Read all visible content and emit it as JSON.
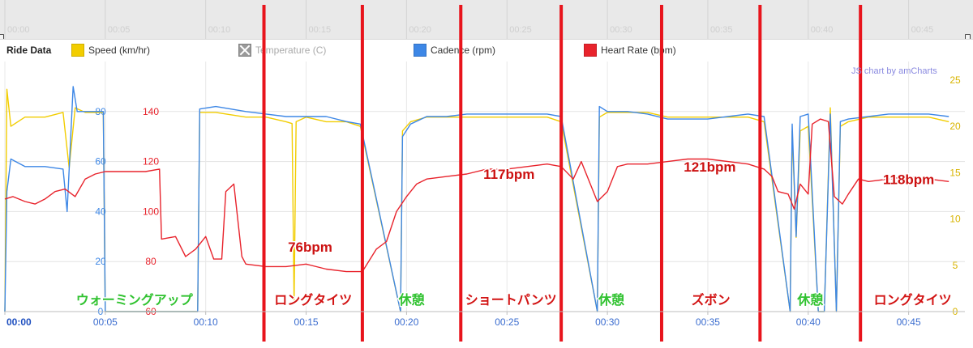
{
  "legend": {
    "title": "Ride Data",
    "items": [
      {
        "label": "Speed (km/hr)",
        "color": "#f2cd00",
        "enabled": true
      },
      {
        "label": "Temperature (C)",
        "color": "#999999",
        "enabled": false
      },
      {
        "label": "Cadence (rpm)",
        "color": "#3d87e6",
        "enabled": true
      },
      {
        "label": "Heart Rate (bpm)",
        "color": "#e8232c",
        "enabled": true
      }
    ]
  },
  "credit": "JS chart by amCharts",
  "navigator_ticks": [
    "00:00",
    "00:05",
    "00:10",
    "00:15",
    "00:20",
    "00:25",
    "00:30",
    "00:35",
    "00:40",
    "00:45"
  ],
  "annotations": {
    "segments": [
      {
        "label": "ウォーミングアップ",
        "color": "#2fc22f"
      },
      {
        "label": "ロングタイツ",
        "color": "#d21313"
      },
      {
        "label": "休憩",
        "color": "#2fc22f"
      },
      {
        "label": "ショートパンツ",
        "color": "#d21313"
      },
      {
        "label": "休憩",
        "color": "#2fc22f"
      },
      {
        "label": "ズボン",
        "color": "#d21313"
      },
      {
        "label": "休憩",
        "color": "#2fc22f"
      },
      {
        "label": "ロングタイツ",
        "color": "#d21313"
      }
    ],
    "divider_minutes": [
      12.9,
      17.8,
      22.7,
      27.7,
      32.7,
      37.6,
      42.6
    ],
    "hr_callouts": [
      {
        "label": "76bpm",
        "x_min": 15.2,
        "hr": 84
      },
      {
        "label": "117bpm",
        "x_min": 25.1,
        "hr": 113
      },
      {
        "label": "121bpm",
        "x_min": 35.1,
        "hr": 116
      },
      {
        "label": "118bpm",
        "x_min": 45.0,
        "hr": 111
      }
    ]
  },
  "chart_data": {
    "type": "line",
    "x_unit": "mm:ss",
    "x_range": [
      0,
      47.8
    ],
    "x_ticks": [
      "00:00",
      "00:05",
      "00:10",
      "00:15",
      "00:20",
      "00:25",
      "00:30",
      "00:35",
      "00:40",
      "00:45"
    ],
    "axes": {
      "cadence": {
        "ticks": [
          0,
          20,
          40,
          60,
          80
        ],
        "range": [
          0,
          100
        ],
        "color": "#3d87e6"
      },
      "heart_rate": {
        "ticks": [
          60,
          80,
          100,
          120,
          140
        ],
        "range": [
          60,
          160
        ],
        "color": "#e8232c"
      },
      "speed": {
        "ticks": [
          0,
          5,
          10,
          15,
          20,
          25
        ],
        "range": [
          0,
          27
        ],
        "color": "#f2cd00"
      }
    },
    "series": [
      {
        "name": "Speed (km/hr)",
        "axis": "speed",
        "color": "#f2cd00",
        "points": [
          [
            0,
            0
          ],
          [
            0.1,
            24
          ],
          [
            0.3,
            20
          ],
          [
            1,
            21
          ],
          [
            2,
            21
          ],
          [
            2.9,
            21.5
          ],
          [
            3.2,
            15.5
          ],
          [
            3.5,
            22
          ],
          [
            4,
            21.5
          ],
          [
            4.9,
            21.5
          ],
          [
            5.0,
            0
          ],
          [
            9.6,
            0
          ],
          [
            9.7,
            21.5
          ],
          [
            10.5,
            21.5
          ],
          [
            12,
            21
          ],
          [
            13,
            21
          ],
          [
            14,
            20.5
          ],
          [
            14.3,
            20.3
          ],
          [
            14.4,
            1
          ],
          [
            14.5,
            20.5
          ],
          [
            15,
            21
          ],
          [
            16,
            20.5
          ],
          [
            17,
            20.5
          ],
          [
            17.7,
            20
          ],
          [
            19.7,
            0
          ],
          [
            19.8,
            19.5
          ],
          [
            20.2,
            20.5
          ],
          [
            21,
            21
          ],
          [
            22,
            21
          ],
          [
            23,
            21
          ],
          [
            24,
            21
          ],
          [
            25,
            21
          ],
          [
            26,
            21
          ],
          [
            27,
            21
          ],
          [
            27.7,
            20.5
          ],
          [
            29.5,
            0
          ],
          [
            29.6,
            21
          ],
          [
            30,
            21.5
          ],
          [
            31,
            21.5
          ],
          [
            32,
            21.5
          ],
          [
            33,
            21
          ],
          [
            34,
            21
          ],
          [
            35,
            21
          ],
          [
            36,
            21
          ],
          [
            37,
            21
          ],
          [
            37.8,
            20.5
          ],
          [
            39.1,
            0
          ],
          [
            39.2,
            19.5
          ],
          [
            39.4,
            8
          ],
          [
            39.6,
            19.5
          ],
          [
            40,
            20
          ],
          [
            40.5,
            0
          ],
          [
            40.8,
            0
          ],
          [
            41.1,
            22
          ],
          [
            41.4,
            0
          ],
          [
            41.6,
            20
          ],
          [
            42,
            20.5
          ],
          [
            43,
            21
          ],
          [
            44,
            21
          ],
          [
            45,
            21
          ],
          [
            46,
            21
          ],
          [
            47,
            20.5
          ]
        ]
      },
      {
        "name": "Cadence (rpm)",
        "axis": "cadence",
        "color": "#3d87e6",
        "points": [
          [
            0,
            0
          ],
          [
            0.1,
            48
          ],
          [
            0.3,
            61
          ],
          [
            1,
            58
          ],
          [
            2,
            58
          ],
          [
            2.9,
            57
          ],
          [
            3.1,
            40
          ],
          [
            3.4,
            90
          ],
          [
            3.6,
            80
          ],
          [
            4,
            80
          ],
          [
            4.9,
            80
          ],
          [
            5.0,
            0
          ],
          [
            9.6,
            0
          ],
          [
            9.7,
            81
          ],
          [
            10.5,
            82
          ],
          [
            12,
            80
          ],
          [
            13,
            79
          ],
          [
            14,
            78
          ],
          [
            15,
            78
          ],
          [
            16,
            78
          ],
          [
            17,
            76
          ],
          [
            17.7,
            75
          ],
          [
            19.7,
            0
          ],
          [
            19.8,
            70
          ],
          [
            20.2,
            75
          ],
          [
            21,
            78
          ],
          [
            22,
            78
          ],
          [
            23,
            79
          ],
          [
            24,
            79
          ],
          [
            25,
            79
          ],
          [
            26,
            79
          ],
          [
            27,
            79
          ],
          [
            27.7,
            78
          ],
          [
            29.5,
            0
          ],
          [
            29.6,
            82
          ],
          [
            30,
            80
          ],
          [
            31,
            80
          ],
          [
            32,
            79
          ],
          [
            33,
            77
          ],
          [
            34,
            77
          ],
          [
            35,
            77
          ],
          [
            36,
            78
          ],
          [
            37,
            79
          ],
          [
            37.8,
            78
          ],
          [
            39.1,
            0
          ],
          [
            39.2,
            75
          ],
          [
            39.4,
            30
          ],
          [
            39.6,
            78
          ],
          [
            40,
            79
          ],
          [
            40.5,
            0
          ],
          [
            40.8,
            0
          ],
          [
            41.1,
            79
          ],
          [
            41.4,
            0
          ],
          [
            41.6,
            76
          ],
          [
            42,
            77
          ],
          [
            43,
            78
          ],
          [
            44,
            79
          ],
          [
            45,
            79
          ],
          [
            46,
            79
          ],
          [
            47,
            78
          ]
        ]
      },
      {
        "name": "Heart Rate (bpm)",
        "axis": "heart_rate",
        "color": "#e8232c",
        "points": [
          [
            0,
            105
          ],
          [
            0.4,
            106
          ],
          [
            1,
            104
          ],
          [
            1.5,
            103
          ],
          [
            2,
            105
          ],
          [
            2.5,
            108
          ],
          [
            3,
            109
          ],
          [
            3.5,
            106
          ],
          [
            4,
            113
          ],
          [
            4.5,
            115
          ],
          [
            5,
            116
          ],
          [
            7,
            116
          ],
          [
            7.7,
            117
          ],
          [
            7.8,
            89
          ],
          [
            8.5,
            90
          ],
          [
            9,
            82
          ],
          [
            9.5,
            85
          ],
          [
            10,
            90
          ],
          [
            10.4,
            81
          ],
          [
            10.8,
            81
          ],
          [
            11,
            108
          ],
          [
            11.4,
            111
          ],
          [
            11.8,
            82
          ],
          [
            12,
            79
          ],
          [
            13,
            78
          ],
          [
            14,
            78
          ],
          [
            15,
            79
          ],
          [
            16,
            77
          ],
          [
            17,
            76
          ],
          [
            17.8,
            76
          ],
          [
            18.5,
            85
          ],
          [
            19,
            88
          ],
          [
            19.5,
            100
          ],
          [
            20,
            106
          ],
          [
            20.5,
            111
          ],
          [
            21,
            113
          ],
          [
            22,
            114
          ],
          [
            23,
            115
          ],
          [
            24,
            117
          ],
          [
            25,
            117
          ],
          [
            26,
            118
          ],
          [
            27,
            119
          ],
          [
            27.7,
            118
          ],
          [
            28.3,
            113
          ],
          [
            28.7,
            120
          ],
          [
            29,
            114
          ],
          [
            29.5,
            104
          ],
          [
            30,
            108
          ],
          [
            30.5,
            118
          ],
          [
            31,
            119
          ],
          [
            32,
            119
          ],
          [
            33,
            120
          ],
          [
            34,
            121
          ],
          [
            35,
            121
          ],
          [
            36,
            120
          ],
          [
            37,
            119
          ],
          [
            37.8,
            117
          ],
          [
            38.2,
            114
          ],
          [
            38.5,
            108
          ],
          [
            39,
            107
          ],
          [
            39.3,
            101
          ],
          [
            39.6,
            111
          ],
          [
            40,
            107
          ],
          [
            40.2,
            135
          ],
          [
            40.6,
            137
          ],
          [
            41,
            136
          ],
          [
            41.3,
            106
          ],
          [
            41.7,
            103
          ],
          [
            42,
            107
          ],
          [
            42.5,
            113
          ],
          [
            43,
            112
          ],
          [
            44,
            113
          ],
          [
            45,
            114
          ],
          [
            46,
            113
          ],
          [
            47,
            112
          ]
        ]
      }
    ]
  }
}
